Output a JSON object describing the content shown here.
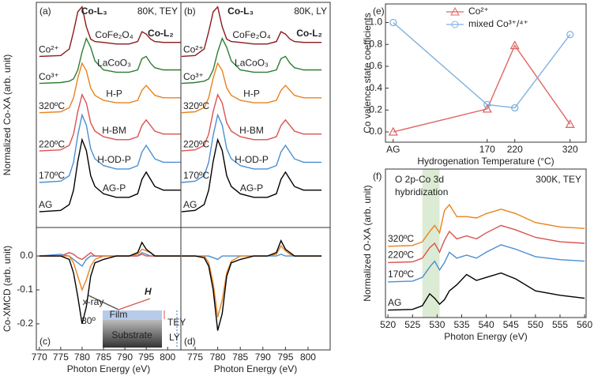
{
  "chart_data": [
    {
      "type": "line",
      "panel": "(a)",
      "ylabel": "Normalized Co-XA (arb. unit)",
      "annotations": [
        "Co-L₃",
        "Co-L₂",
        "80K, TEY"
      ],
      "x": [
        770,
        775,
        777,
        778,
        779,
        780,
        781,
        782,
        783,
        785,
        788,
        791,
        793,
        794,
        795,
        796,
        797,
        799,
        803
      ],
      "xlim": [
        769.3,
        803.1
      ],
      "ylim": [
        0,
        100
      ],
      "series": [
        {
          "name": "Co²⁺",
          "label": "CoFe₂O₄",
          "color": "#8b1a1a",
          "values": [
            76,
            76.4,
            79.3,
            87,
            95.8,
            98,
            89.2,
            83.7,
            82.6,
            82.2,
            81.5,
            81.5,
            82.6,
            87,
            85.9,
            83.7,
            82.6,
            82.2,
            82.2
          ]
        },
        {
          "name": "Co³⁺",
          "label": "LaCoO₃",
          "color": "#2e7d32",
          "values": [
            64,
            64.4,
            65,
            66,
            70,
            78,
            84,
            80,
            74,
            70,
            69,
            69,
            70,
            75,
            76,
            73,
            71,
            70,
            70
          ]
        },
        {
          "name": "320ºC",
          "label": "H-P",
          "color": "#e8821e",
          "values": [
            51,
            51.4,
            53.2,
            57.6,
            66.4,
            73,
            69.7,
            62,
            58.7,
            56.5,
            55.4,
            55.4,
            56.5,
            60.9,
            63.1,
            60.9,
            58.7,
            57.6,
            57.6
          ]
        },
        {
          "name": "220ºC",
          "label": "H-BM",
          "color": "#d9534f",
          "values": [
            34,
            34.5,
            36.5,
            41.5,
            51.5,
            59,
            55.3,
            46.5,
            42.8,
            40.3,
            39,
            39,
            40.3,
            45.3,
            47.8,
            45.3,
            42.8,
            41.5,
            41.5
          ]
        },
        {
          "name": "170ºC",
          "label": "H-OD-P",
          "color": "#4a8fd0",
          "values": [
            20,
            20.6,
            23,
            29,
            41,
            50,
            45.5,
            35,
            30.5,
            27.5,
            26,
            26,
            27.5,
            33.5,
            36.5,
            33.5,
            30.5,
            29,
            29
          ]
        },
        {
          "name": "AG",
          "label": "AG-P",
          "color": "#000000",
          "values": [
            7,
            7.6,
            10.2,
            16.6,
            29.4,
            39,
            34.2,
            23,
            18.2,
            15,
            13.4,
            13.4,
            15,
            21.4,
            24.6,
            21.4,
            18.2,
            16.6,
            16.6
          ]
        }
      ]
    },
    {
      "type": "line",
      "panel": "(b)",
      "annotations": [
        "Co-L₃",
        "Co-L₂",
        "80K, LY"
      ],
      "x": [
        772,
        775,
        777,
        778,
        779,
        780,
        781,
        782,
        783,
        785,
        788,
        791,
        793,
        794,
        795,
        796,
        797,
        799,
        803
      ],
      "xlim": [
        771.85,
        804.9
      ],
      "ylim": [
        0,
        100
      ],
      "series": [
        {
          "name": "Co²⁺",
          "label": "CoFe₂O₄",
          "color": "#8b1a1a",
          "values": [
            76,
            76.4,
            79.3,
            87,
            95.8,
            98,
            89.2,
            83.7,
            82.6,
            82.2,
            81.5,
            81.5,
            82.6,
            87,
            85.9,
            83.7,
            82.6,
            82.2,
            82.2
          ]
        },
        {
          "name": "Co³⁺",
          "label": "LaCoO₃",
          "color": "#2e7d32",
          "values": [
            64,
            64.4,
            65,
            66,
            70,
            78,
            84,
            80,
            74,
            70,
            69,
            69,
            70,
            75,
            76,
            73,
            71,
            70,
            70
          ]
        },
        {
          "name": "320ºC",
          "label": "H-P",
          "color": "#e8821e",
          "values": [
            51,
            51.4,
            53.2,
            57.6,
            66.4,
            73,
            69.7,
            62,
            58.7,
            56.5,
            55.4,
            55.4,
            56.5,
            60.9,
            63.1,
            60.9,
            58.7,
            57.6,
            57.6
          ]
        },
        {
          "name": "220ºC",
          "label": "H-BM",
          "color": "#d9534f",
          "values": [
            34,
            34.5,
            36.5,
            41.5,
            51.5,
            59,
            55.3,
            46.5,
            42.8,
            40.3,
            39,
            39,
            40.3,
            45.3,
            47.8,
            45.3,
            42.8,
            41.5,
            41.5
          ]
        },
        {
          "name": "170ºC",
          "label": "H-OD-P",
          "color": "#4a8fd0",
          "values": [
            20,
            20.6,
            23,
            29,
            41,
            50,
            45.5,
            35,
            30.5,
            27.5,
            26,
            26,
            27.5,
            33.5,
            36.5,
            33.5,
            30.5,
            29,
            29
          ]
        },
        {
          "name": "AG",
          "label": "AG-P",
          "color": "#000000",
          "values": [
            7,
            7.6,
            10.2,
            16.6,
            29.4,
            39,
            34.2,
            23,
            18.2,
            15,
            13.4,
            13.4,
            15,
            21.4,
            24.6,
            21.4,
            18.2,
            16.6,
            16.6
          ]
        }
      ]
    },
    {
      "type": "line",
      "panel": "(c)",
      "ylabel": "Co-XMCD (arb. unit)",
      "xlabel": "Photon Energy (eV)",
      "x": [
        770,
        775,
        777,
        778,
        779,
        780,
        781,
        782,
        783,
        785,
        788,
        791,
        793,
        794,
        795,
        796,
        797,
        799,
        803
      ],
      "xlim": [
        769.3,
        803.1
      ],
      "ylim": [
        -0.277,
        0.084
      ],
      "xticks": [
        770,
        775,
        780,
        785,
        790,
        795,
        800
      ],
      "yticks": [
        {
          "value": 0,
          "label": "0.0"
        },
        {
          "value": -0.1,
          "label": "-0.1"
        },
        {
          "value": -0.2,
          "label": "-0.2"
        }
      ],
      "inset": {
        "beam": "x-ray",
        "field": "H",
        "angle": "30º",
        "film": "Film",
        "substrate": "Substrate",
        "tey": "TEY",
        "ly": "LY"
      },
      "series": [
        {
          "color": "#4a8fd0",
          "values": [
            0,
            0.005,
            0,
            -0.01,
            -0.02,
            -0.03,
            -0.01,
            0,
            0,
            0,
            0,
            0,
            0,
            0.01,
            0.005,
            0,
            0,
            0,
            0
          ]
        },
        {
          "color": "#d9534f",
          "values": [
            0,
            0,
            0.01,
            0.005,
            -0.005,
            -0.01,
            0,
            0.01,
            0,
            0,
            0,
            0,
            0,
            0.005,
            0,
            0,
            0,
            0,
            0
          ]
        },
        {
          "color": "#e8821e",
          "values": [
            0,
            0,
            0,
            -0.02,
            -0.06,
            -0.1,
            -0.07,
            -0.03,
            -0.01,
            0,
            0,
            0,
            0.005,
            0.02,
            0.015,
            0.01,
            0,
            0,
            0
          ]
        },
        {
          "color": "#000000",
          "values": [
            0,
            0,
            -0.01,
            -0.05,
            -0.12,
            -0.2,
            -0.15,
            -0.06,
            -0.02,
            -0.01,
            0,
            0,
            0.01,
            0.04,
            0.02,
            0.01,
            0,
            0,
            0
          ]
        }
      ]
    },
    {
      "type": "line",
      "panel": "(d)",
      "xlabel": "Photon Energy (eV)",
      "x": [
        772,
        775,
        777,
        778,
        779,
        780,
        781,
        782,
        783,
        785,
        788,
        791,
        793,
        794,
        795,
        796,
        797,
        799,
        803
      ],
      "xlim": [
        771.85,
        804.9
      ],
      "ylim": [
        -0.277,
        0.084
      ],
      "xticks": [
        775,
        780,
        785,
        790,
        795,
        800
      ],
      "series": [
        {
          "color": "#4a8fd0",
          "values": [
            0,
            0,
            0,
            0,
            -0.005,
            -0.01,
            0,
            0,
            0,
            0,
            0,
            0,
            0,
            0.005,
            0,
            0,
            0,
            0,
            0
          ]
        },
        {
          "color": "#e8821e",
          "values": [
            0,
            0,
            0,
            -0.02,
            -0.08,
            -0.18,
            -0.13,
            -0.05,
            -0.015,
            0,
            0,
            0,
            0.005,
            0.03,
            0.015,
            0.005,
            0,
            0,
            0
          ]
        },
        {
          "color": "#000000",
          "values": [
            0,
            0,
            -0.005,
            -0.03,
            -0.1,
            -0.22,
            -0.17,
            -0.06,
            -0.02,
            -0.01,
            0,
            0,
            0.01,
            0.045,
            0.02,
            0.01,
            0,
            0,
            0
          ]
        }
      ]
    },
    {
      "type": "line",
      "panel": "(e)",
      "ylabel": "Co valence state coefficients",
      "xlabel": "Hydrogenation Temperature (°C)",
      "x": [
        0,
        170,
        220,
        320
      ],
      "xlim": [
        -14,
        349
      ],
      "ylim": [
        -0.094,
        1.17
      ],
      "xticks": [
        {
          "value": 0,
          "label": "AG"
        },
        170,
        220,
        320
      ],
      "yticks": [
        {
          "value": 0,
          "label": "0.0"
        },
        {
          "value": 0.2,
          "label": "0.2"
        },
        {
          "value": 0.4,
          "label": "0.4"
        },
        {
          "value": 0.6,
          "label": "0.6"
        },
        {
          "value": 0.8,
          "label": "0.8"
        },
        {
          "value": 1,
          "label": "1.0"
        }
      ],
      "legend": "upper center",
      "series": [
        {
          "name": "Co²⁺",
          "color": "#e06666",
          "marker": "triangle",
          "values": [
            0,
            0.21,
            0.79,
            0.07
          ]
        },
        {
          "name": "mixed Co³⁺/⁴⁺",
          "color": "#7fb2e0",
          "marker": "circle",
          "values": [
            1.0,
            0.25,
            0.22,
            0.89
          ]
        }
      ]
    },
    {
      "type": "line",
      "panel": "(f)",
      "ylabel": "Normalized O-XA (arb. unit)",
      "xlabel": "Photon Energy (eV)",
      "annotations": [
        "O 2p-Co 3d",
        "hybridization",
        "300K, TEY"
      ],
      "band": [
        527,
        530.5
      ],
      "band_color": "#dcebd3",
      "x": [
        520,
        525,
        527,
        528.5,
        529.5,
        530.5,
        531.5,
        532.5,
        534,
        536,
        538,
        540,
        543,
        546,
        550,
        555,
        560
      ],
      "xlim": [
        519.5,
        560.3
      ],
      "ylim": [
        0,
        100
      ],
      "xticks": [
        520,
        525,
        530,
        535,
        540,
        545,
        550,
        555,
        560
      ],
      "series": [
        {
          "name": "AG",
          "color": "#000000",
          "values": [
            5,
            5.5,
            8,
            16,
            13,
            9,
            12,
            18,
            22,
            29,
            25,
            27,
            30,
            26,
            18,
            15,
            13
          ]
        },
        {
          "name": "170ºC",
          "color": "#4a8fd0",
          "values": [
            24,
            24.5,
            27,
            34,
            38,
            32,
            37,
            44,
            40,
            42,
            40,
            44,
            49,
            46,
            41,
            39,
            38
          ]
        },
        {
          "name": "220ºC",
          "color": "#d9534f",
          "values": [
            37,
            37.5,
            40,
            47,
            50,
            44,
            52,
            58,
            53,
            55,
            53,
            57,
            62,
            59,
            54,
            51,
            50
          ]
        },
        {
          "name": "320ºC",
          "color": "#e8821e",
          "values": [
            48,
            48.5,
            51,
            58,
            62,
            57,
            72,
            76,
            68,
            68,
            67,
            70,
            73,
            70,
            64,
            61,
            60
          ]
        }
      ]
    }
  ]
}
